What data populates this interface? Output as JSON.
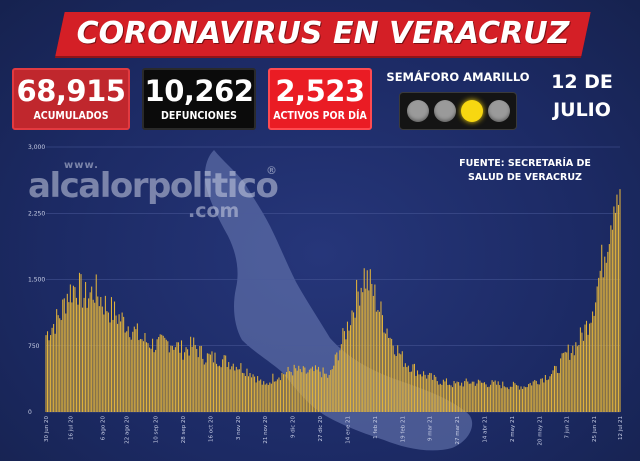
{
  "title": "CORONAVIRUS EN VERACRUZ",
  "stats": {
    "acumulados": {
      "value": "68,915",
      "label": "ACUMULADOS",
      "color": "#c0272d"
    },
    "defunciones": {
      "value": "10,262",
      "label": "DEFUNCIONES",
      "color": "#0b0b0b"
    },
    "activos": {
      "value": "2,523",
      "label": "ACTIVOS POR DÍA",
      "color": "#ea1c24"
    }
  },
  "semaforo": {
    "label": "SEMÁFORO AMARILLO",
    "active_light": 3,
    "light_count": 4,
    "active_color": "#f7d711"
  },
  "date": {
    "line1": "12 DE",
    "line2": "JULIO"
  },
  "source": {
    "line1": "FUENTE: SECRETARÍA DE",
    "line2": "SALUD DE VERACRUZ"
  },
  "watermark": {
    "www": "www.",
    "main": "alcalorpolitico",
    "com": ".com",
    "reg": "®"
  },
  "chart_data": {
    "type": "bar",
    "title": "",
    "xlabel": "",
    "ylabel": "",
    "ylim": [
      0,
      3000
    ],
    "y_ticks": [
      {
        "value": 3000,
        "label": "3,000"
      },
      {
        "value": 2250,
        "label": "2,250"
      },
      {
        "value": 1500,
        "label": "1,500"
      },
      {
        "value": 750,
        "label": "750"
      },
      {
        "value": 0,
        "label": "0"
      }
    ],
    "grid": true,
    "bar_color": "#e0b23c",
    "x_start": "2020-06-30",
    "x_end": "2021-07-12",
    "tick_labels": [
      {
        "date": "2020-06-30",
        "label": "30 jun 20"
      },
      {
        "date": "2020-07-16",
        "label": "16 jul 20"
      },
      {
        "date": "2020-08-06",
        "label": "6 ago 20"
      },
      {
        "date": "2020-08-22",
        "label": "22 ago 20"
      },
      {
        "date": "2020-09-10",
        "label": "10 sep 20"
      },
      {
        "date": "2020-09-28",
        "label": "28 sep 20"
      },
      {
        "date": "2020-10-16",
        "label": "16 oct 20"
      },
      {
        "date": "2020-11-03",
        "label": "3 nov 20"
      },
      {
        "date": "2020-11-21",
        "label": "21 nov 20"
      },
      {
        "date": "2020-12-09",
        "label": "9 dic 20"
      },
      {
        "date": "2020-12-27",
        "label": "27 dic 20"
      },
      {
        "date": "2021-01-14",
        "label": "14 ene 21"
      },
      {
        "date": "2021-02-01",
        "label": "1 feb 21"
      },
      {
        "date": "2021-02-19",
        "label": "19 feb 21"
      },
      {
        "date": "2021-03-09",
        "label": "9 mar 21"
      },
      {
        "date": "2021-03-27",
        "label": "27 mar 21"
      },
      {
        "date": "2021-04-14",
        "label": "14 abr 21"
      },
      {
        "date": "2021-05-02",
        "label": "2 may 21"
      },
      {
        "date": "2021-05-20",
        "label": "20 may 21"
      },
      {
        "date": "2021-06-07",
        "label": "7 jun 21"
      },
      {
        "date": "2021-06-25",
        "label": "25 jun 21"
      },
      {
        "date": "2021-07-12",
        "label": "12 jul 21"
      }
    ],
    "anchors": [
      {
        "date": "2020-06-30",
        "value": 900
      },
      {
        "date": "2020-07-04",
        "value": 1000
      },
      {
        "date": "2020-07-10",
        "value": 1150
      },
      {
        "date": "2020-07-14",
        "value": 1380
      },
      {
        "date": "2020-07-20",
        "value": 1480
      },
      {
        "date": "2020-07-26",
        "value": 1330
      },
      {
        "date": "2020-08-01",
        "value": 1420
      },
      {
        "date": "2020-08-08",
        "value": 1250
      },
      {
        "date": "2020-08-16",
        "value": 1120
      },
      {
        "date": "2020-08-24",
        "value": 1000
      },
      {
        "date": "2020-09-01",
        "value": 850
      },
      {
        "date": "2020-09-10",
        "value": 780
      },
      {
        "date": "2020-09-20",
        "value": 820
      },
      {
        "date": "2020-09-28",
        "value": 720
      },
      {
        "date": "2020-10-05",
        "value": 780
      },
      {
        "date": "2020-10-12",
        "value": 650
      },
      {
        "date": "2020-10-22",
        "value": 620
      },
      {
        "date": "2020-11-01",
        "value": 560
      },
      {
        "date": "2020-11-12",
        "value": 460
      },
      {
        "date": "2020-11-21",
        "value": 300
      },
      {
        "date": "2020-11-26",
        "value": 400
      },
      {
        "date": "2020-12-03",
        "value": 450
      },
      {
        "date": "2020-12-10",
        "value": 490
      },
      {
        "date": "2020-12-18",
        "value": 460
      },
      {
        "date": "2020-12-27",
        "value": 480
      },
      {
        "date": "2021-01-02",
        "value": 400
      },
      {
        "date": "2021-01-08",
        "value": 700
      },
      {
        "date": "2021-01-14",
        "value": 1000
      },
      {
        "date": "2021-01-20",
        "value": 1350
      },
      {
        "date": "2021-01-25",
        "value": 1600
      },
      {
        "date": "2021-01-30",
        "value": 1450
      },
      {
        "date": "2021-02-05",
        "value": 1150
      },
      {
        "date": "2021-02-12",
        "value": 850
      },
      {
        "date": "2021-02-20",
        "value": 600
      },
      {
        "date": "2021-03-01",
        "value": 480
      },
      {
        "date": "2021-03-12",
        "value": 380
      },
      {
        "date": "2021-03-25",
        "value": 320
      },
      {
        "date": "2021-04-05",
        "value": 350
      },
      {
        "date": "2021-04-18",
        "value": 330
      },
      {
        "date": "2021-04-30",
        "value": 310
      },
      {
        "date": "2021-05-10",
        "value": 300
      },
      {
        "date": "2021-05-20",
        "value": 380
      },
      {
        "date": "2021-05-31",
        "value": 480
      },
      {
        "date": "2021-06-07",
        "value": 680
      },
      {
        "date": "2021-06-14",
        "value": 800
      },
      {
        "date": "2021-06-20",
        "value": 1000
      },
      {
        "date": "2021-06-25",
        "value": 1300
      },
      {
        "date": "2021-07-01",
        "value": 1800
      },
      {
        "date": "2021-07-06",
        "value": 2300
      },
      {
        "date": "2021-07-09",
        "value": 2650
      },
      {
        "date": "2021-07-12",
        "value": 2523
      }
    ]
  }
}
